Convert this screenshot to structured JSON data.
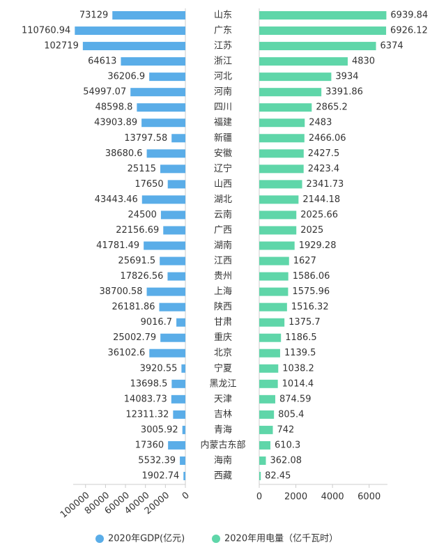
{
  "chart_data": {
    "type": "butterfly",
    "categories": [
      "山东",
      "广东",
      "江苏",
      "浙江",
      "河北",
      "河南",
      "四川",
      "福建",
      "新疆",
      "安徽",
      "辽宁",
      "山西",
      "湖北",
      "云南",
      "广西",
      "湖南",
      "江西",
      "贵州",
      "上海",
      "陕西",
      "甘肃",
      "重庆",
      "北京",
      "宁夏",
      "黑龙江",
      "天津",
      "吉林",
      "青海",
      "内蒙古东部",
      "海南",
      "西藏"
    ],
    "series": [
      {
        "name": "2020年GDP(亿元)",
        "color": "#5aade8",
        "side": "left",
        "values": [
          73129,
          110760.94,
          102719,
          64613,
          36206.9,
          54997.07,
          48598.8,
          43903.89,
          13797.58,
          38680.6,
          25115,
          17650,
          43443.46,
          24500,
          22156.69,
          41781.49,
          25691.5,
          17826.56,
          38700.58,
          26181.86,
          9016.7,
          25002.79,
          36102.6,
          3920.55,
          13698.5,
          14083.73,
          12311.32,
          3005.92,
          17360,
          5532.39,
          1902.74
        ],
        "xlim": [
          0,
          111000
        ],
        "xticks": [
          100000,
          80000,
          60000,
          40000,
          20000,
          0
        ]
      },
      {
        "name": "2020年用电量（亿千瓦时）",
        "color": "#5fd6a9",
        "side": "right",
        "values": [
          6939.84,
          6926.12,
          6374,
          4830,
          3934,
          3391.86,
          2865.2,
          2483,
          2466.06,
          2427.5,
          2423.4,
          2341.73,
          2144.18,
          2025.66,
          2025,
          1929.28,
          1627,
          1586.06,
          1575.96,
          1516.32,
          1375.7,
          1186.5,
          1139.5,
          1038.2,
          1014.4,
          874.59,
          805.4,
          742,
          610.3,
          362.08,
          82.45
        ],
        "xlim": [
          0,
          7000
        ],
        "xticks": [
          0,
          2000,
          4000,
          6000
        ]
      }
    ]
  }
}
